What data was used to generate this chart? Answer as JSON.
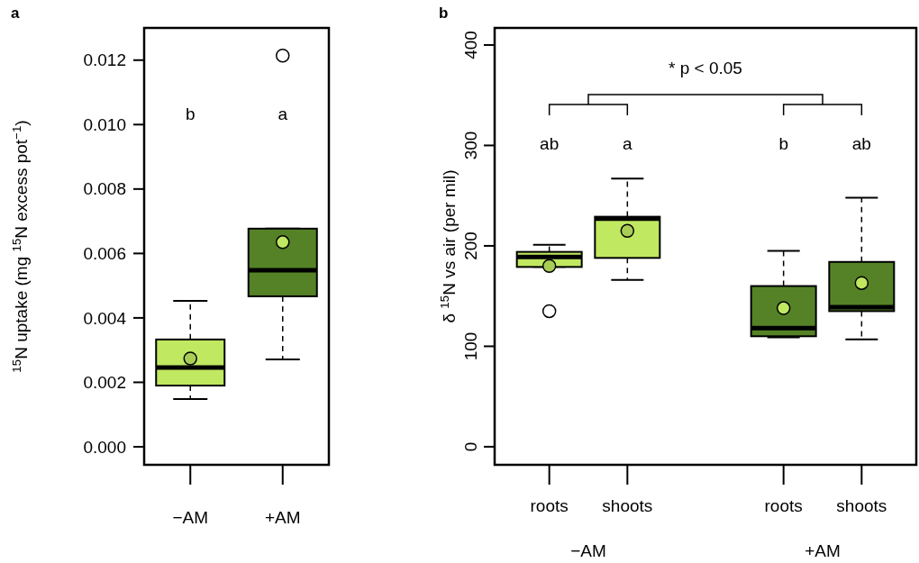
{
  "chart_data": [
    {
      "type": "box",
      "title": "a",
      "ylabel": "$^{15}$N uptake (mg $^{15}$N excess pot$^{−1}$)",
      "categories": [
        "−AM",
        "+AM"
      ],
      "colors": [
        "#c0e860",
        "#558226"
      ],
      "ylim": [
        -0.00056,
        0.013
      ],
      "yticks": [
        {
          "value": 0,
          "label": "0.000"
        },
        0.002,
        0.004,
        0.006,
        0.008,
        {
          "value": 0.01,
          "label": "0.010"
        },
        0.012
      ],
      "boxes": [
        {
          "low": 0.00148,
          "q1": 0.0019,
          "median": 0.00246,
          "q3": 0.00333,
          "high": 0.00453,
          "mean": 0.00274
        },
        {
          "low": 0.00271,
          "q1": 0.00467,
          "median": 0.00548,
          "q3": 0.00677,
          "high": 0.00677,
          "mean": 0.00635,
          "outliers": [
            0.01214
          ]
        }
      ],
      "annotations": [
        "b",
        "a"
      ]
    },
    {
      "type": "box",
      "title": "b",
      "ylabel": "δ $^{15}$N vs air (per mil)",
      "categories": [
        "roots",
        "shoots",
        null,
        "roots",
        "shoots"
      ],
      "colors": [
        "#c0e860",
        "#c0e860",
        null,
        "#558226",
        "#558226"
      ],
      "ylim": [
        -18,
        417
      ],
      "yticks": [
        0,
        100,
        200,
        300,
        400
      ],
      "boxes": [
        {
          "low": 179,
          "q1": 179,
          "median": 189,
          "q3": 194,
          "high": 201,
          "mean": 180,
          "outliers": [
            135
          ]
        },
        {
          "low": 166,
          "q1": 188,
          "median": 227,
          "q3": 229,
          "high": 267,
          "mean": 215
        },
        null,
        {
          "low": 109,
          "q1": 110,
          "median": 118,
          "q3": 160,
          "high": 195,
          "mean": 138
        },
        {
          "low": 107,
          "q1": 135,
          "median": 139,
          "q3": 184,
          "high": 248,
          "mean": 163
        }
      ],
      "annotations": [
        "ab",
        "a",
        "b",
        "ab",
        "* p < 0.05",
        "−AM",
        "+AM"
      ]
    }
  ]
}
